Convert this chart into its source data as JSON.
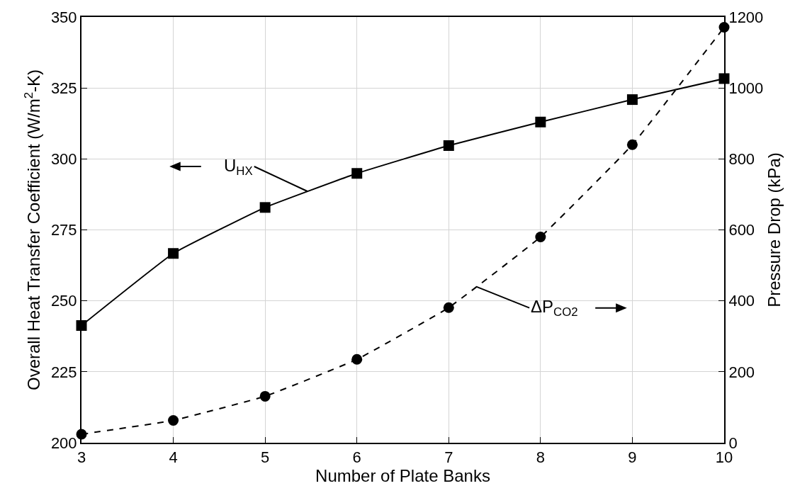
{
  "chart_data": {
    "type": "line",
    "xlabel": "Number of Plate Banks",
    "ylabel": "Overall Heat Transfer Coefficient (W/m$^{2}$-K)",
    "y2label": "Pressure Drop (kPa)",
    "x": [
      3,
      4,
      5,
      6,
      7,
      8,
      9,
      10
    ],
    "series": [
      {
        "color": "#000000",
        "marker": "square",
        "line_style": "solid",
        "values": [
          241.3,
          266.7,
          282.9,
          294.9,
          304.7,
          313.0,
          320.9,
          328.3
        ]
      },
      {
        "color": "#000000",
        "marker": "circle",
        "line_style": "dashed",
        "axis": "y2",
        "values": [
          24,
          63,
          131,
          235,
          381,
          580,
          840,
          1171
        ]
      }
    ],
    "annotations": [
      {
        "text": "U$_{HX}$",
        "x": 5.46,
        "y": 288.6
      },
      {
        "text": "ΔP$_{CO2}$",
        "x": 7.3,
        "y": 255
      }
    ],
    "xlim": [
      3,
      10
    ],
    "xticks": [
      3,
      4,
      5,
      6,
      7,
      8,
      9,
      10
    ],
    "ylim": [
      200,
      350
    ],
    "yticks": [
      200,
      225,
      250,
      275,
      300,
      325,
      350
    ],
    "y2lim": [
      0,
      1200
    ],
    "y2ticks": [
      0,
      200,
      400,
      600,
      800,
      1000,
      1200
    ],
    "grid": true,
    "legend": false
  }
}
